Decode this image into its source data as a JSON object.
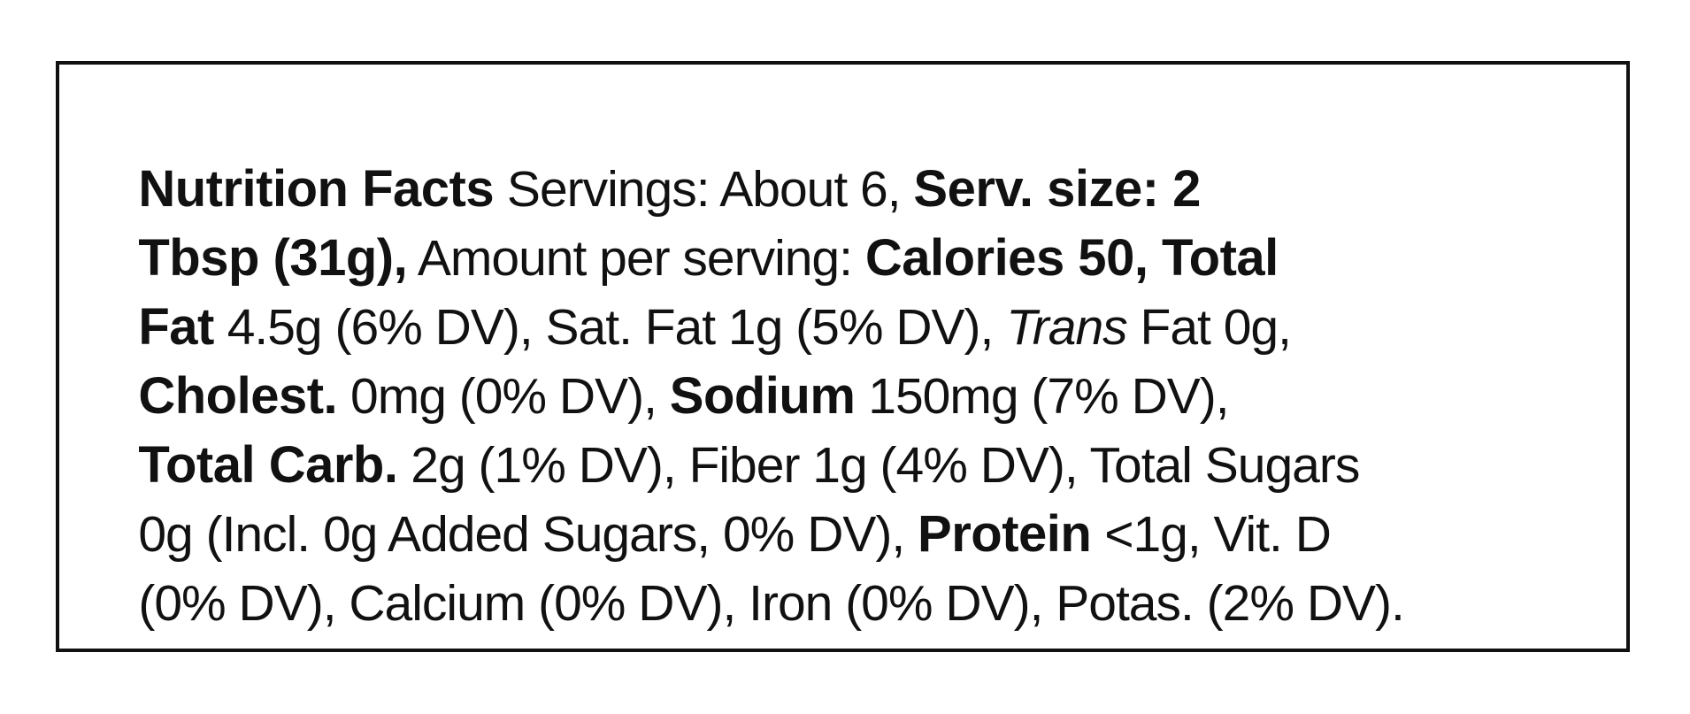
{
  "label": {
    "lines": [
      [
        "Nutrition Facts",
        " Servings: About 6, ",
        "Serv. size: 2"
      ],
      [
        "Tbsp (31g),",
        " Amount per serving: ",
        "Calories 50, Total"
      ],
      [
        "Fat",
        " 4.5g (6% DV), Sat. Fat 1g (5% DV), ",
        "Trans",
        " Fat 0g,"
      ],
      [
        "Cholest.",
        " 0mg (0% DV), ",
        "Sodium",
        " 150mg (7% DV),"
      ],
      [
        "Total Carb.",
        " 2g (1% DV), Fiber 1g (4% DV), Total Sugars"
      ],
      [
        "0g (Incl. 0g Added Sugars, 0% DV), ",
        "Protein",
        " <1g, Vit. D"
      ],
      [
        "(0% DV), Calcium (0% DV), Iron (0% DV), Potas. (2% DV)."
      ]
    ]
  }
}
